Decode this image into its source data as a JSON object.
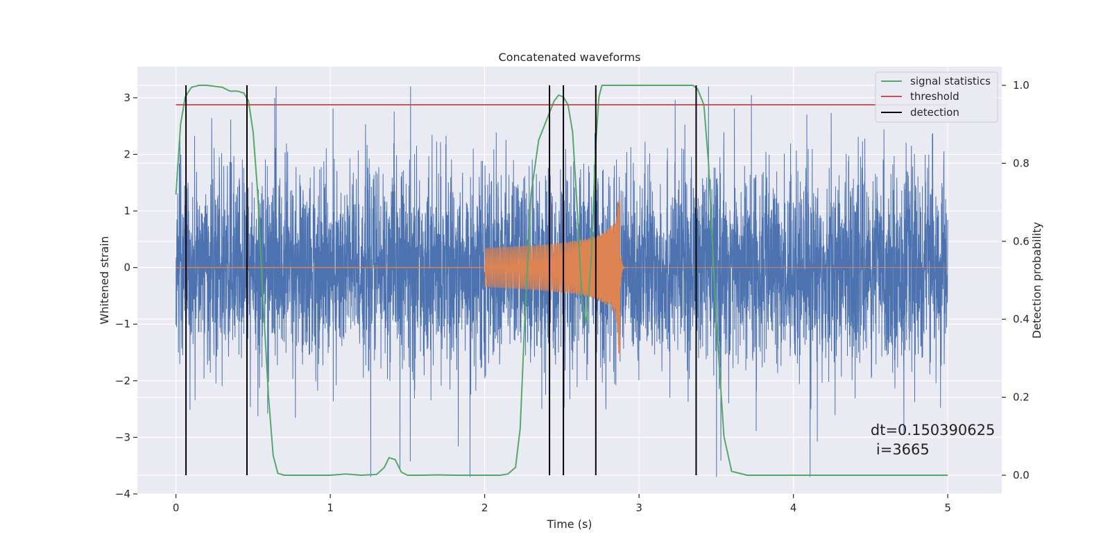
{
  "chart_data": {
    "type": "line",
    "title": "Concatenated waveforms",
    "xlabel": "Time (s)",
    "ylabel": "Whitened strain",
    "y2label": "Detection probability",
    "xlim": [
      -0.25,
      5.35
    ],
    "ylim": [
      -4,
      3.55
    ],
    "y2lim": [
      -0.048,
      1.048
    ],
    "x_ticks": [
      0,
      1,
      2,
      3,
      4,
      5
    ],
    "x_tick_labels": [
      "0",
      "1",
      "2",
      "3",
      "4",
      "5"
    ],
    "y_ticks": [
      -4,
      -3,
      -2,
      -1,
      0,
      1,
      2,
      3
    ],
    "y_tick_labels": [
      "−4",
      "−3",
      "−2",
      "−1",
      "0",
      "1",
      "2",
      "3"
    ],
    "y2_ticks": [
      0.0,
      0.2,
      0.4,
      0.6,
      0.8,
      1.0
    ],
    "y2_tick_labels": [
      "0.0",
      "0.2",
      "0.4",
      "0.6",
      "0.8",
      "1.0"
    ],
    "grid": true,
    "legend_position": "top-right",
    "colors": {
      "background": "#eaeaf2",
      "grid": "#ffffff",
      "noise": "#4c72b0",
      "injected_signal": "#dd8452",
      "signal_statistics": "#55a868",
      "threshold": "#c44e52",
      "detection": "#000000"
    },
    "noise": {
      "x_range": [
        0,
        5
      ],
      "typical_range": [
        -1.5,
        1.5
      ],
      "peak_range": [
        -3.7,
        3.2
      ],
      "seed": 3665
    },
    "injected_signal": {
      "x_start": 2.0,
      "x_merger": 2.88,
      "x_end": 3.0,
      "start_amplitude": 0.35,
      "peak_values": [
        1.2,
        -1.55
      ]
    },
    "series": [
      {
        "name": "signal statistics",
        "axis": "right",
        "x": [
          0.0,
          0.03,
          0.06,
          0.1,
          0.15,
          0.2,
          0.3,
          0.35,
          0.4,
          0.44,
          0.47,
          0.5,
          0.53,
          0.56,
          0.6,
          0.63,
          0.66,
          0.7,
          0.8,
          0.9,
          1.0,
          1.1,
          1.2,
          1.3,
          1.35,
          1.38,
          1.42,
          1.46,
          1.5,
          1.6,
          1.7,
          1.8,
          1.9,
          2.0,
          2.1,
          2.15,
          2.2,
          2.23,
          2.26,
          2.3,
          2.35,
          2.4,
          2.45,
          2.48,
          2.51,
          2.54,
          2.57,
          2.6,
          2.63,
          2.66,
          2.69,
          2.72,
          2.74,
          2.76,
          2.8,
          3.0,
          3.2,
          3.3,
          3.35,
          3.38,
          3.42,
          3.45,
          3.5,
          3.55,
          3.6,
          3.7,
          4.0,
          4.5,
          5.0
        ],
        "y": [
          0.72,
          0.9,
          0.97,
          0.995,
          1.0,
          1.0,
          0.995,
          0.985,
          0.985,
          0.98,
          0.96,
          0.88,
          0.72,
          0.48,
          0.2,
          0.05,
          0.005,
          0.0,
          0.0,
          0.0,
          0.0,
          0.003,
          0.0,
          0.002,
          0.02,
          0.045,
          0.04,
          0.008,
          0.0,
          0.0,
          0.001,
          0.0,
          0.0,
          0.0,
          0.0,
          0.003,
          0.02,
          0.12,
          0.4,
          0.72,
          0.86,
          0.91,
          0.96,
          0.975,
          0.97,
          0.95,
          0.88,
          0.68,
          0.45,
          0.39,
          0.55,
          0.85,
          0.97,
          1.0,
          1.0,
          1.0,
          1.0,
          1.0,
          1.0,
          0.99,
          0.95,
          0.8,
          0.4,
          0.1,
          0.01,
          0.0,
          0.0,
          0.0,
          0.0
        ]
      },
      {
        "name": "threshold",
        "axis": "right",
        "x": [
          0,
          5
        ],
        "y": [
          0.95,
          0.95
        ]
      },
      {
        "name": "detection",
        "axis": "right",
        "x_positions": [
          0.065,
          0.46,
          2.42,
          2.51,
          2.72,
          3.37
        ],
        "y_range": [
          0,
          1
        ]
      }
    ],
    "annotations": {
      "line1": "dt=0.150390625",
      "line2": "i=3665",
      "x": 4.5,
      "y": 0.1
    }
  }
}
